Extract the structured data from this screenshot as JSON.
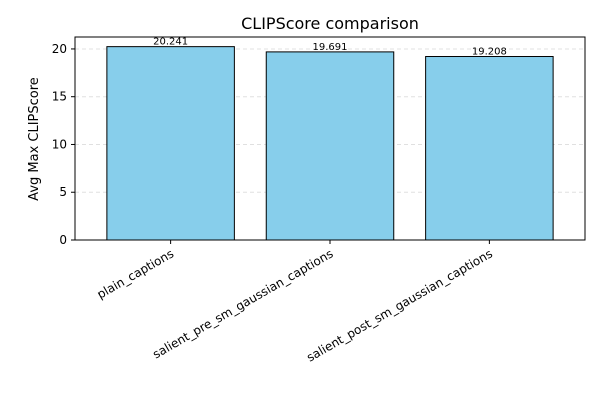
{
  "chart_data": {
    "type": "bar",
    "title": "CLIPScore comparison",
    "xlabel": "",
    "ylabel": "Avg Max CLIPScore",
    "categories": [
      "plain_captions",
      "salient_pre_sm_gaussian_captions",
      "salient_post_sm_gaussian_captions"
    ],
    "values": [
      20.241,
      19.691,
      19.208
    ],
    "data_labels": [
      "20.241",
      "19.691",
      "19.208"
    ],
    "ylim": [
      0,
      21.25
    ],
    "yticks": [
      0,
      5,
      10,
      15,
      20
    ],
    "ytick_labels": [
      "0",
      "5",
      "10",
      "15",
      "20"
    ],
    "grid": "y-dashed",
    "legend": "none",
    "colors": {
      "bar_fill": "#87ceeb",
      "bar_edge": "#000000",
      "grid": "#e0e0e0",
      "axis": "#000000"
    }
  }
}
